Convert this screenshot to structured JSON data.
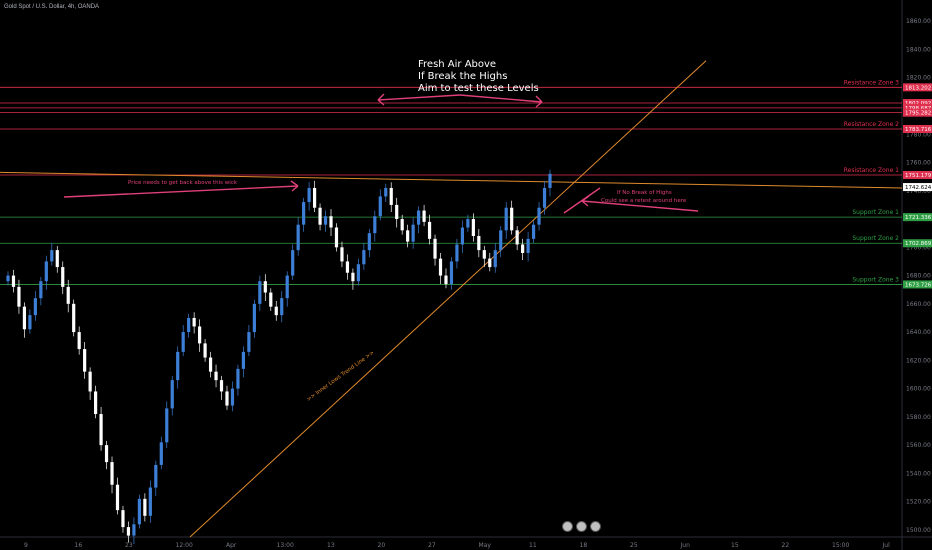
{
  "symbol_label": "Gold Spot / U.S. Dollar, 4h, OANDA",
  "annotations": {
    "fresh_air_line1": "Fresh Air Above",
    "fresh_air_line2": "If Break the Highs",
    "fresh_air_line3": "Aim to test these Levels",
    "price_needs": "Price needs to get back above this wick",
    "no_break_line1": "If No Break of Highs",
    "no_break_line2": "Could see a retest around here",
    "trend_line_label": ">> Inner Lows Trend Line >>"
  },
  "colors": {
    "background": "#000000",
    "bull": "#3d7fd6",
    "bear": "#ffffff",
    "resistance": "#e0304f",
    "support": "#2f9e44",
    "trend": "#e08a2c",
    "annotation": "#e0407a"
  },
  "chart_data": {
    "type": "candlestick",
    "title": "Gold Spot / U.S. Dollar, 4h, OANDA",
    "ylim": [
      1495,
      1875
    ],
    "y_ticks": [
      1500,
      1520,
      1540,
      1560,
      1580,
      1600,
      1620,
      1640,
      1660,
      1680,
      1700,
      1720,
      1740,
      1760,
      1780,
      1800,
      1820,
      1840,
      1860
    ],
    "x_ticks": [
      "9",
      "16",
      "23",
      "12:00",
      "Apr",
      "13:00",
      "13",
      "20",
      "27",
      "May",
      "11",
      "18",
      "25",
      "Jun",
      "15",
      "22",
      "15:00",
      "Jul"
    ],
    "current_price": 1742.624,
    "resistance_zones": [
      {
        "name": "Resistance Zone 1",
        "value": 1751.179
      },
      {
        "name": "Resistance Zone 2",
        "value": 1783.716
      },
      {
        "name": "Resistance Zone 3",
        "value": 1813.202
      }
    ],
    "extra_levels": [
      1802.092,
      1798.687,
      1795.282
    ],
    "support_zones": [
      {
        "name": "Support Zone 1",
        "value": 1721.336
      },
      {
        "name": "Support Zone 2",
        "value": 1702.869
      },
      {
        "name": "Support Zone 3",
        "value": 1673.726
      }
    ],
    "closes": [
      1680,
      1672,
      1658,
      1642,
      1652,
      1664,
      1676,
      1690,
      1698,
      1686,
      1672,
      1660,
      1640,
      1628,
      1612,
      1598,
      1582,
      1560,
      1548,
      1532,
      1514,
      1502,
      1496,
      1504,
      1522,
      1510,
      1530,
      1546,
      1562,
      1586,
      1606,
      1626,
      1640,
      1650,
      1644,
      1632,
      1622,
      1612,
      1606,
      1598,
      1588,
      1600,
      1614,
      1626,
      1640,
      1660,
      1676,
      1668,
      1658,
      1652,
      1664,
      1680,
      1698,
      1716,
      1732,
      1742,
      1728,
      1716,
      1722,
      1714,
      1700,
      1690,
      1682,
      1676,
      1688,
      1698,
      1710,
      1722,
      1736,
      1742,
      1730,
      1720,
      1712,
      1704,
      1716,
      1726,
      1718,
      1706,
      1692,
      1680,
      1674,
      1690,
      1702,
      1714,
      1720,
      1708,
      1698,
      1692,
      1686,
      1698,
      1712,
      1728,
      1712,
      1702,
      1696,
      1706,
      1716,
      1728,
      1742,
      1752
    ]
  }
}
